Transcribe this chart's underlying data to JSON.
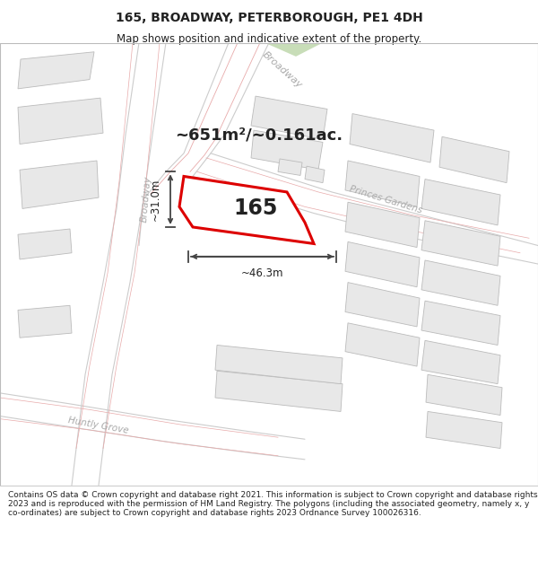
{
  "title": "165, BROADWAY, PETERBOROUGH, PE1 4DH",
  "subtitle": "Map shows position and indicative extent of the property.",
  "footer": "Contains OS data © Crown copyright and database right 2021. This information is subject to Crown copyright and database rights 2023 and is reproduced with the permission of HM Land Registry. The polygons (including the associated geometry, namely x, y co-ordinates) are subject to Crown copyright and database rights 2023 Ordnance Survey 100026316.",
  "area_label": "~651m²/~0.161ac.",
  "property_label": "165",
  "dim_width": "~46.3m",
  "dim_height": "~31.0m",
  "map_bg": "#ffffff",
  "building_fill": "#e8e8e8",
  "building_stroke": "#bbbbbb",
  "road_outline": "#e8b8b8",
  "road_label_color": "#aaaaaa",
  "highlight_stroke": "#dd0000",
  "arrow_color": "#444444",
  "text_color": "#222222",
  "green_fill": "#d0e8c8",
  "title_fontsize": 10,
  "subtitle_fontsize": 8.5,
  "footer_fontsize": 6.5
}
